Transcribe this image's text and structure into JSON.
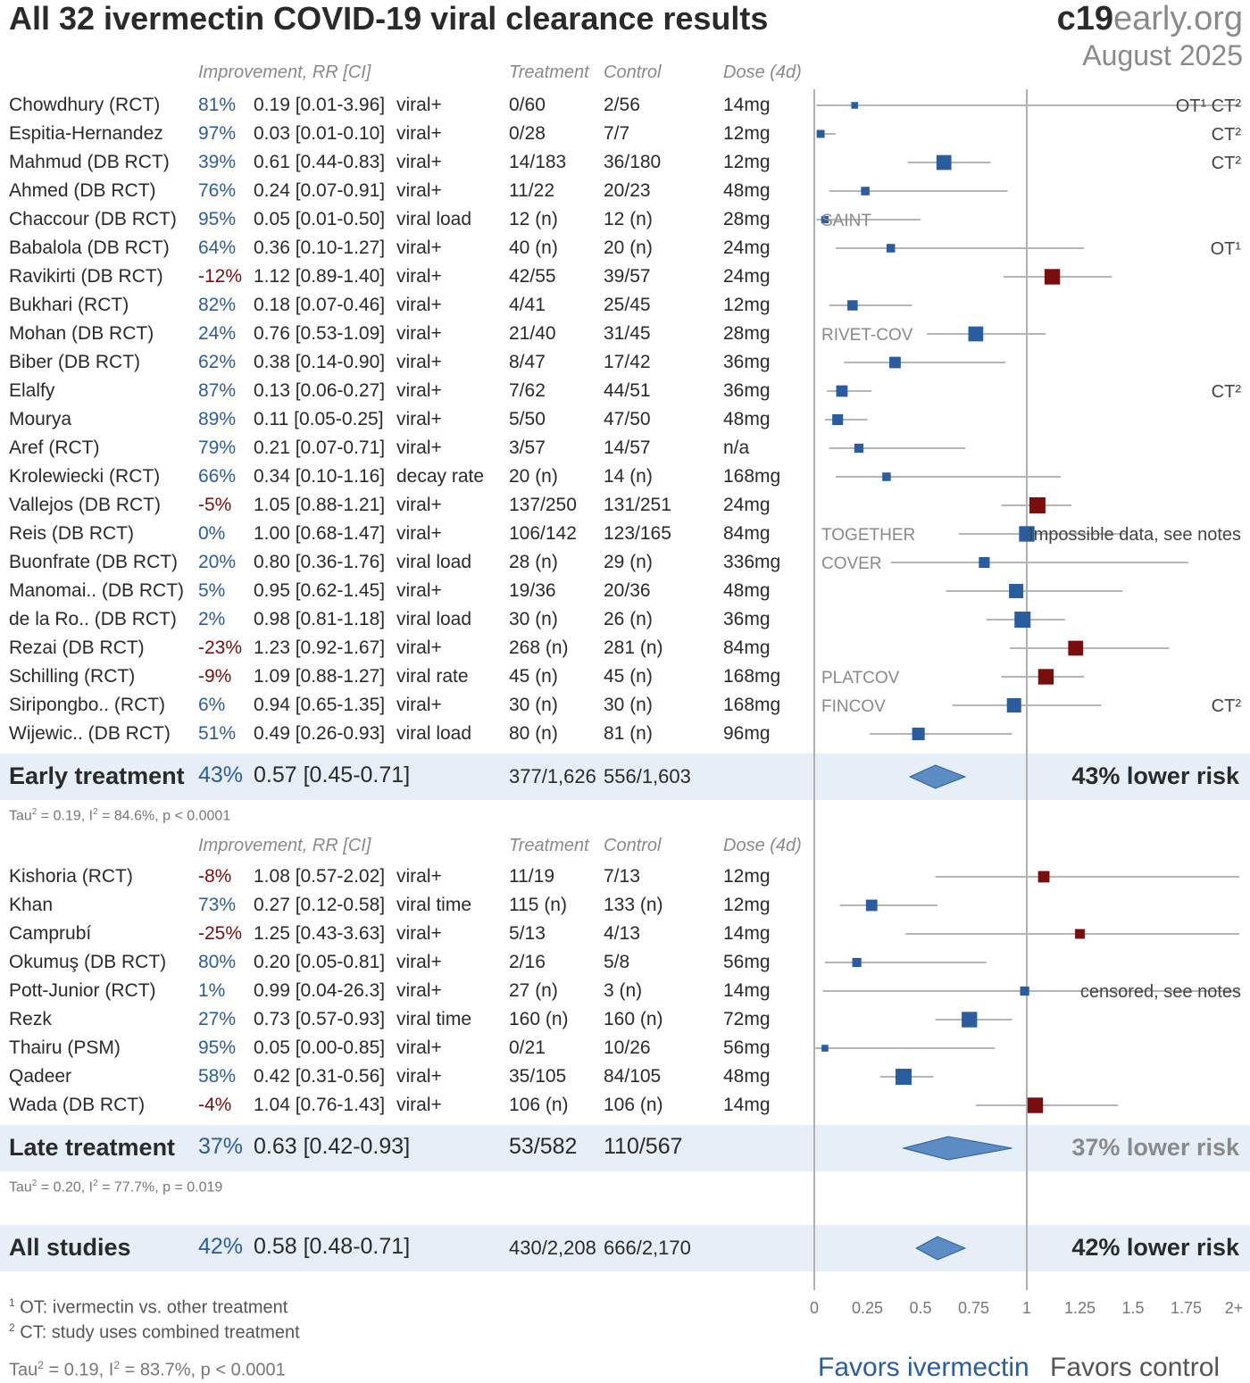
{
  "title": "All 32 ivermectin COVID-19 viral clearance results",
  "site": {
    "bold": "c19",
    "light1": "early",
    "light2": ".org"
  },
  "date": "August 2025",
  "headers": {
    "improvement": "Improvement, RR [CI]",
    "treatment": "Treatment",
    "control": "Control",
    "dose": "Dose (4d)"
  },
  "chart_data": {
    "type": "forest",
    "x_ticks": [
      "0",
      "0.25",
      "0.5",
      "0.75",
      "1",
      "1.25",
      "1.5",
      "1.75",
      "2+"
    ],
    "xlim": [
      0,
      2
    ],
    "xlabel_left": "Favors ivermectin",
    "xlabel_right": "Favors control",
    "colors": {
      "favorable": "#2a5da0",
      "unfavorable": "#7a0d0d",
      "diamond": "#5b8cc4"
    },
    "groups": [
      {
        "studies": [
          {
            "name": "Chowdhury (RCT)",
            "imp": "81%",
            "rr_text": "0.19 [0.01-3.96]",
            "outcome": "viral+",
            "treatment": "0/60",
            "control": "2/56",
            "dose": "14mg",
            "rr": 0.19,
            "lo": 0.01,
            "hi": 3.96,
            "weight": 0.2,
            "label": "",
            "note": "OT¹ CT²"
          },
          {
            "name": "Espitia-Hernandez",
            "imp": "97%",
            "rr_text": "0.03 [0.01-0.10]",
            "outcome": "viral+",
            "treatment": "0/28",
            "control": "7/7",
            "dose": "12mg",
            "rr": 0.03,
            "lo": 0.01,
            "hi": 0.1,
            "weight": 0.3,
            "label": "",
            "note": "CT²"
          },
          {
            "name": "Mahmud (DB RCT)",
            "imp": "39%",
            "rr_text": "0.61 [0.44-0.83]",
            "outcome": "viral+",
            "treatment": "14/183",
            "control": "36/180",
            "dose": "12mg",
            "rr": 0.61,
            "lo": 0.44,
            "hi": 0.83,
            "weight": 0.9,
            "label": "",
            "note": "CT²"
          },
          {
            "name": "Ahmed (DB RCT)",
            "imp": "76%",
            "rr_text": "0.24 [0.07-0.91]",
            "outcome": "viral+",
            "treatment": "11/22",
            "control": "20/23",
            "dose": "48mg",
            "rr": 0.24,
            "lo": 0.07,
            "hi": 0.91,
            "weight": 0.35,
            "label": "",
            "note": ""
          },
          {
            "name": "Chaccour (DB RCT)",
            "imp": "95%",
            "rr_text": "0.05 [0.01-0.50]",
            "outcome": "viral load",
            "treatment": "12 (n)",
            "control": "12 (n)",
            "dose": "28mg",
            "rr": 0.05,
            "lo": 0.01,
            "hi": 0.5,
            "weight": 0.25,
            "label": "SAINT",
            "note": ""
          },
          {
            "name": "Babalola (DB RCT)",
            "imp": "64%",
            "rr_text": "0.36 [0.10-1.27]",
            "outcome": "viral+",
            "treatment": "40 (n)",
            "control": "20 (n)",
            "dose": "24mg",
            "rr": 0.36,
            "lo": 0.1,
            "hi": 1.27,
            "weight": 0.35,
            "label": "",
            "note": "OT¹"
          },
          {
            "name": "Ravikirti (DB RCT)",
            "imp": "-12%",
            "rr_text": "1.12 [0.89-1.40]",
            "outcome": "viral+",
            "treatment": "42/55",
            "control": "39/57",
            "dose": "24mg",
            "rr": 1.12,
            "lo": 0.89,
            "hi": 1.4,
            "weight": 0.95,
            "label": "",
            "note": ""
          },
          {
            "name": "Bukhari (RCT)",
            "imp": "82%",
            "rr_text": "0.18 [0.07-0.46]",
            "outcome": "viral+",
            "treatment": "4/41",
            "control": "25/45",
            "dose": "12mg",
            "rr": 0.18,
            "lo": 0.07,
            "hi": 0.46,
            "weight": 0.5,
            "label": "",
            "note": ""
          },
          {
            "name": "Mohan (DB RCT)",
            "imp": "24%",
            "rr_text": "0.76 [0.53-1.09]",
            "outcome": "viral+",
            "treatment": "21/40",
            "control": "31/45",
            "dose": "28mg",
            "rr": 0.76,
            "lo": 0.53,
            "hi": 1.09,
            "weight": 0.9,
            "label": "RIVET-COV",
            "note": ""
          },
          {
            "name": "Biber (DB RCT)",
            "imp": "62%",
            "rr_text": "0.38 [0.14-0.90]",
            "outcome": "viral+",
            "treatment": "8/47",
            "control": "17/42",
            "dose": "36mg",
            "rr": 0.38,
            "lo": 0.14,
            "hi": 0.9,
            "weight": 0.6,
            "label": "",
            "note": ""
          },
          {
            "name": "Elalfy",
            "imp": "87%",
            "rr_text": "0.13 [0.06-0.27]",
            "outcome": "viral+",
            "treatment": "7/62",
            "control": "44/51",
            "dose": "36mg",
            "rr": 0.13,
            "lo": 0.06,
            "hi": 0.27,
            "weight": 0.6,
            "label": "",
            "note": "CT²"
          },
          {
            "name": "Mourya",
            "imp": "89%",
            "rr_text": "0.11 [0.05-0.25]",
            "outcome": "viral+",
            "treatment": "5/50",
            "control": "47/50",
            "dose": "48mg",
            "rr": 0.11,
            "lo": 0.05,
            "hi": 0.25,
            "weight": 0.55,
            "label": "",
            "note": ""
          },
          {
            "name": "Aref (RCT)",
            "imp": "79%",
            "rr_text": "0.21 [0.07-0.71]",
            "outcome": "viral+",
            "treatment": "3/57",
            "control": "14/57",
            "dose": "n/a",
            "rr": 0.21,
            "lo": 0.07,
            "hi": 0.71,
            "weight": 0.4,
            "label": "",
            "note": ""
          },
          {
            "name": "Krolewiecki (RCT)",
            "imp": "66%",
            "rr_text": "0.34 [0.10-1.16]",
            "outcome": "decay rate",
            "treatment": "20 (n)",
            "control": "14 (n)",
            "dose": "168mg",
            "rr": 0.34,
            "lo": 0.1,
            "hi": 1.16,
            "weight": 0.35,
            "label": "",
            "note": ""
          },
          {
            "name": "Vallejos (DB RCT)",
            "imp": "-5%",
            "rr_text": "1.05 [0.88-1.21]",
            "outcome": "viral+",
            "treatment": "137/250",
            "control": "131/251",
            "dose": "24mg",
            "rr": 1.05,
            "lo": 0.88,
            "hi": 1.21,
            "weight": 1.0,
            "label": "",
            "note": ""
          },
          {
            "name": "Reis (DB RCT)",
            "imp": "0%",
            "rr_text": "1.00 [0.68-1.47]",
            "outcome": "viral+",
            "treatment": "106/142",
            "control": "123/165",
            "dose": "84mg",
            "rr": 1.0,
            "lo": 0.68,
            "hi": 1.47,
            "weight": 0.95,
            "label": "TOGETHER",
            "note": "Impossible data, see notes"
          },
          {
            "name": "Buonfrate (DB RCT)",
            "imp": "20%",
            "rr_text": "0.80 [0.36-1.76]",
            "outcome": "viral load",
            "treatment": "28 (n)",
            "control": "29 (n)",
            "dose": "336mg",
            "rr": 0.8,
            "lo": 0.36,
            "hi": 1.76,
            "weight": 0.55,
            "label": "COVER",
            "note": ""
          },
          {
            "name": "Manomai.. (DB RCT)",
            "imp": "5%",
            "rr_text": "0.95 [0.62-1.45]",
            "outcome": "viral+",
            "treatment": "19/36",
            "control": "20/36",
            "dose": "48mg",
            "rr": 0.95,
            "lo": 0.62,
            "hi": 1.45,
            "weight": 0.85,
            "label": "",
            "note": ""
          },
          {
            "name": "de la Ro.. (DB RCT)",
            "imp": "2%",
            "rr_text": "0.98 [0.81-1.18]",
            "outcome": "viral load",
            "treatment": "30 (n)",
            "control": "26 (n)",
            "dose": "36mg",
            "rr": 0.98,
            "lo": 0.81,
            "hi": 1.18,
            "weight": 1.0,
            "label": "",
            "note": ""
          },
          {
            "name": "Rezai (DB RCT)",
            "imp": "-23%",
            "rr_text": "1.23 [0.92-1.67]",
            "outcome": "viral+",
            "treatment": "268 (n)",
            "control": "281 (n)",
            "dose": "84mg",
            "rr": 1.23,
            "lo": 0.92,
            "hi": 1.67,
            "weight": 0.9,
            "label": "",
            "note": ""
          },
          {
            "name": "Schilling (RCT)",
            "imp": "-9%",
            "rr_text": "1.09 [0.88-1.27]",
            "outcome": "viral rate",
            "treatment": "45 (n)",
            "control": "45 (n)",
            "dose": "168mg",
            "rr": 1.09,
            "lo": 0.88,
            "hi": 1.27,
            "weight": 0.95,
            "label": "PLATCOV",
            "note": ""
          },
          {
            "name": "Siripongbo.. (RCT)",
            "imp": "6%",
            "rr_text": "0.94 [0.65-1.35]",
            "outcome": "viral+",
            "treatment": "30 (n)",
            "control": "30 (n)",
            "dose": "168mg",
            "rr": 0.94,
            "lo": 0.65,
            "hi": 1.35,
            "weight": 0.85,
            "label": "FINCOV",
            "note": "CT²"
          },
          {
            "name": "Wijewic.. (DB RCT)",
            "imp": "51%",
            "rr_text": "0.49 [0.26-0.93]",
            "outcome": "viral load",
            "treatment": "80 (n)",
            "control": "81 (n)",
            "dose": "96mg",
            "rr": 0.49,
            "lo": 0.26,
            "hi": 0.93,
            "weight": 0.7,
            "label": "",
            "note": ""
          }
        ],
        "summary": {
          "name": "Early treatment",
          "imp": "43%",
          "rr_text": "0.57 [0.45-0.71]",
          "treatment": "377/1,626",
          "control": "556/1,603",
          "risk": "43% lower risk",
          "rr": 0.57,
          "lo": 0.45,
          "hi": 0.71
        },
        "stats": {
          "tau": "0.19",
          "i2": "84.6%",
          "p": "p < 0.0001"
        }
      },
      {
        "studies": [
          {
            "name": "Kishoria (RCT)",
            "imp": "-8%",
            "rr_text": "1.08 [0.57-2.02]",
            "outcome": "viral+",
            "treatment": "11/19",
            "control": "7/13",
            "dose": "12mg",
            "rr": 1.08,
            "lo": 0.57,
            "hi": 2.02,
            "weight": 0.6,
            "label": "",
            "note": ""
          },
          {
            "name": "Khan",
            "imp": "73%",
            "rr_text": "0.27 [0.12-0.58]",
            "outcome": "viral time",
            "treatment": "115 (n)",
            "control": "133 (n)",
            "dose": "12mg",
            "rr": 0.27,
            "lo": 0.12,
            "hi": 0.58,
            "weight": 0.6,
            "label": "",
            "note": ""
          },
          {
            "name": "Camprubí",
            "imp": "-25%",
            "rr_text": "1.25 [0.43-3.63]",
            "outcome": "viral+",
            "treatment": "5/13",
            "control": "4/13",
            "dose": "14mg",
            "rr": 1.25,
            "lo": 0.43,
            "hi": 3.63,
            "weight": 0.45,
            "label": "",
            "note": ""
          },
          {
            "name": "Okumuş (DB RCT)",
            "imp": "80%",
            "rr_text": "0.20 [0.05-0.81]",
            "outcome": "viral+",
            "treatment": "2/16",
            "control": "5/8",
            "dose": "56mg",
            "rr": 0.2,
            "lo": 0.05,
            "hi": 0.81,
            "weight": 0.4,
            "label": "",
            "note": ""
          },
          {
            "name": "Pott-Junior (RCT)",
            "imp": "1%",
            "rr_text": "0.99 [0.04-26.3]",
            "outcome": "viral+",
            "treatment": "27 (n)",
            "control": "3 (n)",
            "dose": "14mg",
            "rr": 0.99,
            "lo": 0.04,
            "hi": 26.3,
            "weight": 0.4,
            "label": "",
            "note": "censored, see notes"
          },
          {
            "name": "Rezk",
            "imp": "27%",
            "rr_text": "0.73 [0.57-0.93]",
            "outcome": "viral time",
            "treatment": "160 (n)",
            "control": "160 (n)",
            "dose": "72mg",
            "rr": 0.73,
            "lo": 0.57,
            "hi": 0.93,
            "weight": 0.95,
            "label": "",
            "note": ""
          },
          {
            "name": "Thairu (PSM)",
            "imp": "95%",
            "rr_text": "0.05 [0.00-0.85]",
            "outcome": "viral+",
            "treatment": "0/21",
            "control": "10/26",
            "dose": "56mg",
            "rr": 0.05,
            "lo": 0.0,
            "hi": 0.85,
            "weight": 0.2,
            "label": "",
            "note": ""
          },
          {
            "name": "Qadeer",
            "imp": "58%",
            "rr_text": "0.42 [0.31-0.56]",
            "outcome": "viral+",
            "treatment": "35/105",
            "control": "84/105",
            "dose": "48mg",
            "rr": 0.42,
            "lo": 0.31,
            "hi": 0.56,
            "weight": 1.0,
            "label": "",
            "note": ""
          },
          {
            "name": "Wada (DB RCT)",
            "imp": "-4%",
            "rr_text": "1.04 [0.76-1.43]",
            "outcome": "viral+",
            "treatment": "106 (n)",
            "control": "106 (n)",
            "dose": "14mg",
            "rr": 1.04,
            "lo": 0.76,
            "hi": 1.43,
            "weight": 0.95,
            "label": "",
            "note": ""
          }
        ],
        "summary": {
          "name": "Late treatment",
          "imp": "37%",
          "rr_text": "0.63 [0.42-0.93]",
          "treatment": "53/582",
          "control": "110/567",
          "risk": "37% lower risk",
          "rr": 0.63,
          "lo": 0.42,
          "hi": 0.93
        },
        "stats": {
          "tau": "0.20",
          "i2": "77.7%",
          "p": "p = 0.019"
        }
      }
    ],
    "overall": {
      "name": "All studies",
      "imp": "42%",
      "rr_text": "0.58 [0.48-0.71]",
      "treatment": "430/2,208",
      "control": "666/2,170",
      "risk": "42% lower risk",
      "rr": 0.58,
      "lo": 0.48,
      "hi": 0.71
    },
    "overall_stats": {
      "tau": "0.19",
      "i2": "83.7%",
      "p": "p < 0.0001"
    }
  },
  "footnotes": {
    "one": "OT: ivermectin vs. other treatment",
    "two": "CT: study uses combined treatment"
  }
}
